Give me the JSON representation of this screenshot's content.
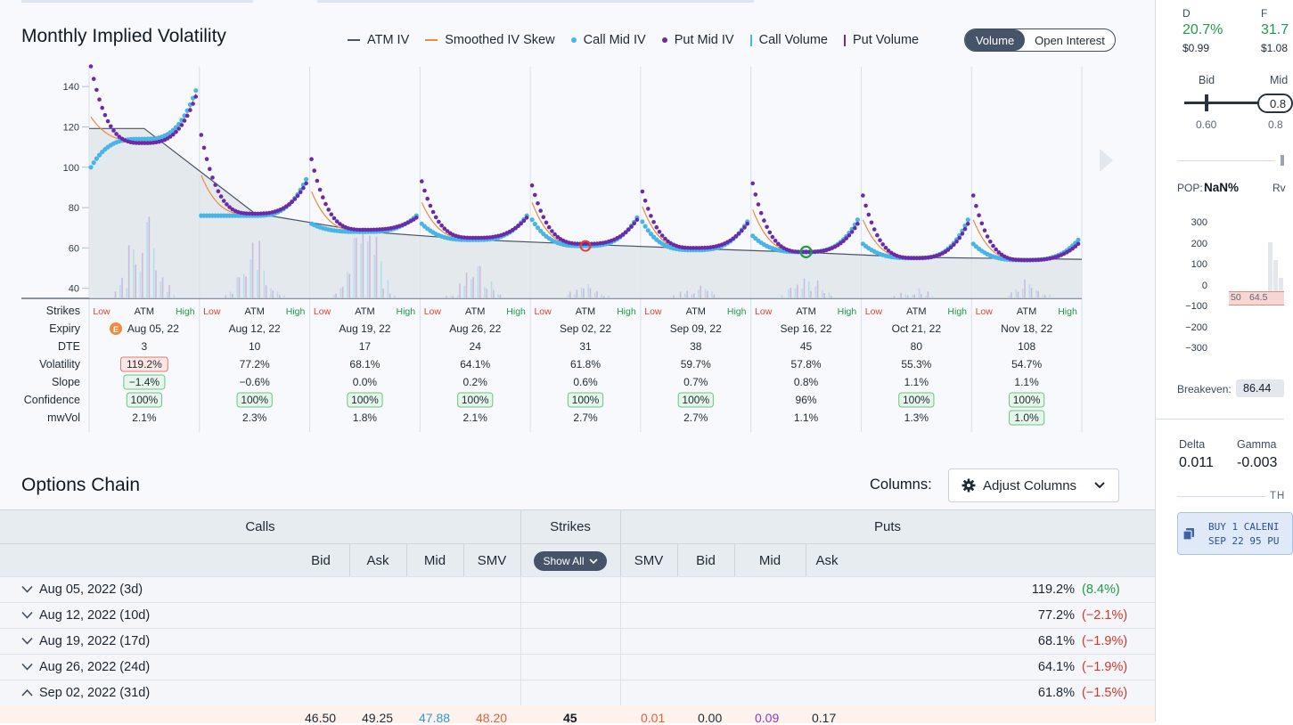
{
  "vol_chart": {
    "title": "Monthly Implied Volatility",
    "legend": [
      {
        "label": "ATM IV",
        "kind": "line",
        "color": "#4a5563"
      },
      {
        "label": "Smoothed IV Skew",
        "kind": "line",
        "color": "#f08a3c"
      },
      {
        "label": "Call Mid IV",
        "kind": "dot",
        "color": "#47b6e6"
      },
      {
        "label": "Put Mid IV",
        "kind": "dot",
        "color": "#6d2aa8"
      },
      {
        "label": "Call Volume",
        "kind": "bar",
        "color": "#47b6e6"
      },
      {
        "label": "Put Volume",
        "kind": "bar",
        "color": "#6d2aa8"
      }
    ],
    "toggle": {
      "volume": "Volume",
      "open_interest": "Open Interest",
      "active": "volume"
    },
    "row_labels": {
      "strikes": "Strikes",
      "expiry": "Expiry",
      "dte": "DTE",
      "volatility": "Volatility",
      "slope": "Slope",
      "confidence": "Confidence",
      "mwvol": "mwVol"
    },
    "strike_labels": {
      "low": "Low",
      "atm": "ATM",
      "high": "High"
    },
    "earnings_badge": "E"
  },
  "chart_data": {
    "type": "scatter",
    "ylim": [
      35,
      152
    ],
    "yticks": [
      40,
      60,
      80,
      100,
      120,
      140
    ],
    "grid": true,
    "legend": "top-right",
    "atm_iv": [
      119.2,
      77.2,
      68.1,
      64.1,
      61.8,
      59.7,
      57.8,
      55.3,
      54.7
    ],
    "expiries": [
      {
        "expiry": "Aug 05, 22",
        "dte": "3",
        "volatility": "119.2%",
        "slope": "−1.4%",
        "confidence": "100%",
        "mwvol": "2.1%",
        "hl_vol": "red",
        "hl_slope": "green",
        "hl_conf": "green",
        "hl_mw": "",
        "earnings": true,
        "marker": "",
        "call": {
          "start": 100,
          "dip": 114,
          "end": 138
        },
        "put": {
          "start": 150,
          "dip": 112,
          "end": 135
        },
        "vol_peak": 58
      },
      {
        "expiry": "Aug 12, 22",
        "dte": "10",
        "volatility": "77.2%",
        "slope": "−0.6%",
        "confidence": "100%",
        "mwvol": "2.3%",
        "hl_vol": "",
        "hl_slope": "",
        "hl_conf": "green",
        "hl_mw": "",
        "earnings": false,
        "marker": "",
        "call": {
          "start": 76,
          "dip": 76,
          "end": 94
        },
        "put": {
          "start": 116,
          "dip": 77,
          "end": 92
        },
        "vol_peak": 32
      },
      {
        "expiry": "Aug 19, 22",
        "dte": "17",
        "volatility": "68.1%",
        "slope": "0.0%",
        "confidence": "100%",
        "mwvol": "1.8%",
        "hl_vol": "",
        "hl_slope": "",
        "hl_conf": "green",
        "hl_mw": "",
        "earnings": false,
        "marker": "",
        "call": {
          "start": 72,
          "dip": 68,
          "end": 76
        },
        "put": {
          "start": 104,
          "dip": 69,
          "end": 75
        },
        "vol_peak": 50
      },
      {
        "expiry": "Aug 26, 22",
        "dte": "24",
        "volatility": "64.1%",
        "slope": "0.2%",
        "confidence": "100%",
        "mwvol": "2.1%",
        "hl_vol": "",
        "hl_slope": "",
        "hl_conf": "green",
        "hl_mw": "",
        "earnings": false,
        "marker": "",
        "call": {
          "start": 72,
          "dip": 64,
          "end": 76
        },
        "put": {
          "start": 93,
          "dip": 65,
          "end": 75
        },
        "vol_peak": 18
      },
      {
        "expiry": "Sep 02, 22",
        "dte": "31",
        "volatility": "61.8%",
        "slope": "0.6%",
        "confidence": "100%",
        "mwvol": "2.7%",
        "hl_vol": "",
        "hl_slope": "",
        "hl_conf": "green",
        "hl_mw": "",
        "earnings": false,
        "marker": "red",
        "call": {
          "start": 74,
          "dip": 61,
          "end": 75
        },
        "put": {
          "start": 91,
          "dip": 62,
          "end": 74
        },
        "vol_peak": 8
      },
      {
        "expiry": "Sep 09, 22",
        "dte": "38",
        "volatility": "59.7%",
        "slope": "0.7%",
        "confidence": "100%",
        "mwvol": "2.7%",
        "hl_vol": "",
        "hl_slope": "",
        "hl_conf": "green",
        "hl_mw": "",
        "earnings": false,
        "marker": "",
        "call": {
          "start": 73,
          "dip": 59,
          "end": 73
        },
        "put": {
          "start": 88,
          "dip": 60,
          "end": 72
        },
        "vol_peak": 8
      },
      {
        "expiry": "Sep 16, 22",
        "dte": "45",
        "volatility": "57.8%",
        "slope": "0.8%",
        "confidence": "96%",
        "mwvol": "1.1%",
        "hl_vol": "",
        "hl_slope": "",
        "hl_conf": "",
        "hl_mw": "",
        "earnings": false,
        "marker": "green",
        "call": {
          "start": 66,
          "dip": 58,
          "end": 74
        },
        "put": {
          "start": 92,
          "dip": 58,
          "end": 72
        },
        "vol_peak": 14
      },
      {
        "expiry": "Oct 21, 22",
        "dte": "80",
        "volatility": "55.3%",
        "slope": "1.1%",
        "confidence": "100%",
        "mwvol": "1.3%",
        "hl_vol": "",
        "hl_slope": "",
        "hl_conf": "green",
        "hl_mw": "",
        "earnings": false,
        "marker": "",
        "call": {
          "start": 62,
          "dip": 55,
          "end": 74
        },
        "put": {
          "start": 86,
          "dip": 55,
          "end": 72
        },
        "vol_peak": 6
      },
      {
        "expiry": "Nov 18, 22",
        "dte": "108",
        "volatility": "54.7%",
        "slope": "1.1%",
        "confidence": "100%",
        "mwvol": "1.0%",
        "hl_vol": "",
        "hl_slope": "",
        "hl_conf": "green",
        "hl_mw": "green",
        "earnings": false,
        "marker": "",
        "call": {
          "start": 62,
          "dip": 54,
          "end": 64
        },
        "put": {
          "start": 86,
          "dip": 54,
          "end": 62
        },
        "vol_peak": 10
      }
    ]
  },
  "options_chain": {
    "title": "Options Chain",
    "columns_label": "Columns:",
    "adjust_button": "Adjust Columns",
    "header": {
      "calls": "Calls",
      "strikes": "Strikes",
      "puts": "Puts",
      "call_cols": [
        "Bid",
        "Ask",
        "Mid",
        "SMV"
      ],
      "show_all": "Show All",
      "put_cols": [
        "SMV",
        "Bid",
        "Mid",
        "Ask"
      ]
    },
    "expirations": [
      {
        "label": "Aug 05, 2022 (3d)",
        "iv": "119.2%",
        "change": "(8.4%)",
        "dir": "up",
        "expanded": false
      },
      {
        "label": "Aug 12, 2022 (10d)",
        "iv": "77.2%",
        "change": "(−2.1%)",
        "dir": "down",
        "expanded": false
      },
      {
        "label": "Aug 19, 2022 (17d)",
        "iv": "68.1%",
        "change": "(−1.9%)",
        "dir": "down",
        "expanded": false
      },
      {
        "label": "Aug 26, 2022 (24d)",
        "iv": "64.1%",
        "change": "(−1.9%)",
        "dir": "down",
        "expanded": false
      },
      {
        "label": "Sep 02, 2022 (31d)",
        "iv": "61.8%",
        "change": "(−1.5%)",
        "dir": "down",
        "expanded": true
      }
    ],
    "row": {
      "call_bid": "46.50",
      "call_ask": "49.25",
      "call_mid": "47.88",
      "call_smv": "48.20",
      "strike": "45",
      "put_smv": "0.01",
      "put_bid": "0.00",
      "put_mid": "0.09",
      "put_ask": "0.17"
    }
  },
  "side_panel": {
    "d_label": "D",
    "d_value": "20.7%",
    "d_price": "$0.99",
    "f_label": "F",
    "f_value": "31.7",
    "f_price": "$1.08",
    "bid_label": "Bid",
    "mid_label": "Mid",
    "bid_value": "0.60",
    "mid_value": "0.8",
    "mid_input": "0.8",
    "pop_label": "POP:",
    "pop_value": "NaN%",
    "rv_label": "Rv",
    "pnl_ticks": [
      "300",
      "200",
      "100",
      "0",
      "−100",
      "−200",
      "−300"
    ],
    "pnl_x_labels": [
      "50",
      "64.5"
    ],
    "breakeven_label": "Breakeven:",
    "breakeven_value": "86.44",
    "delta_label": "Delta",
    "delta_value": "0.011",
    "gamma_label": "Gamma",
    "gamma_value": "-0.003",
    "section_label": "TH",
    "order_line1": "BUY 1 CALENI",
    "order_line2": "SEP 22 95 PU"
  }
}
